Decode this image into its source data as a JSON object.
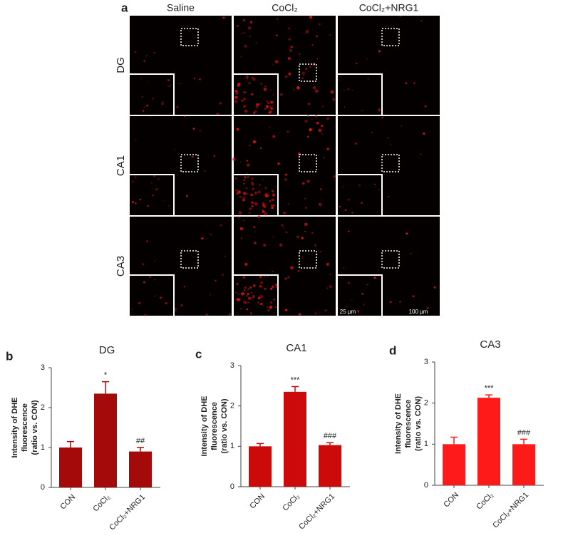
{
  "panel_a": {
    "label": "a",
    "columns": [
      "Saline",
      "CoCl₂",
      "CoCl₂+NRG1"
    ],
    "rows": [
      "DG",
      "CA1",
      "CA3"
    ],
    "scale_bars": [
      "25 µm",
      "100 µm"
    ]
  },
  "chart_data": [
    {
      "type": "bar",
      "panel": "b",
      "title": "DG",
      "ylabel": [
        "Intensity of DHE",
        "fluorescence",
        "(ratio vs. CON)"
      ],
      "categories": [
        "CON",
        "CoCl₂",
        "CoCl₂+NRG1"
      ],
      "values": [
        1.0,
        2.35,
        0.9
      ],
      "errors": [
        0.15,
        0.3,
        0.1
      ],
      "annotations": [
        null,
        "*",
        "##"
      ],
      "color": "#a50a0a",
      "ylim": [
        0,
        3
      ],
      "yticks": [
        0,
        1,
        2,
        3
      ]
    },
    {
      "type": "bar",
      "panel": "c",
      "title": "CA1",
      "ylabel": [
        "Intensity of DHE",
        "fluorescence",
        "(ratio vs. CON)"
      ],
      "categories": [
        "CON",
        "CoCl₂",
        "CoCl₂+NRG1"
      ],
      "values": [
        1.0,
        2.35,
        1.03
      ],
      "errors": [
        0.07,
        0.13,
        0.06
      ],
      "annotations": [
        null,
        "***",
        "###"
      ],
      "color": "#cc0a0a",
      "ylim": [
        0,
        3
      ],
      "yticks": [
        0,
        1,
        2,
        3
      ]
    },
    {
      "type": "bar",
      "panel": "d",
      "title": "CA3",
      "ylabel": [
        "Intensity of DHE",
        "fluorescence",
        "(ratio vs. CON)"
      ],
      "categories": [
        "CON",
        "CoCl₂",
        "CoCl₂+NRG1"
      ],
      "values": [
        1.0,
        2.13,
        1.0
      ],
      "errors": [
        0.17,
        0.07,
        0.12
      ],
      "annotations": [
        null,
        "***",
        "###"
      ],
      "color": "#ff1a1a",
      "ylim": [
        0,
        3
      ],
      "yticks": [
        0,
        1,
        2,
        3
      ]
    }
  ]
}
